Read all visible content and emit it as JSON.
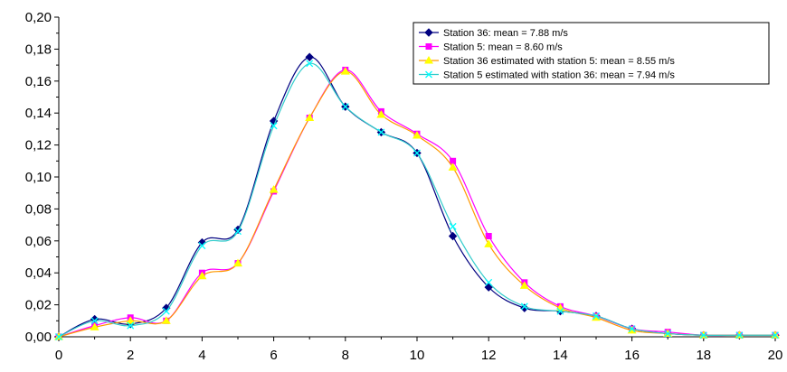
{
  "chart_data": {
    "type": "line",
    "x": [
      0,
      1,
      2,
      3,
      4,
      5,
      6,
      7,
      8,
      9,
      10,
      11,
      12,
      13,
      14,
      15,
      16,
      17,
      18,
      19,
      20
    ],
    "xlim": [
      0,
      20
    ],
    "ylim": [
      0,
      0.2
    ],
    "x_ticks": [
      "0",
      "2",
      "4",
      "6",
      "8",
      "10",
      "12",
      "14",
      "16",
      "18",
      "20"
    ],
    "y_ticks": [
      "0,00",
      "0,02",
      "0,04",
      "0,06",
      "0,08",
      "0,10",
      "0,12",
      "0,14",
      "0,16",
      "0,18",
      "0,20"
    ],
    "grid": false,
    "legend_position": "top-right",
    "series": [
      {
        "name": "Station 36: mean = 7.88 m/s",
        "color": "#000080",
        "marker": "diamond",
        "values": [
          0.0,
          0.011,
          0.008,
          0.018,
          0.059,
          0.067,
          0.135,
          0.175,
          0.144,
          0.128,
          0.115,
          0.063,
          0.031,
          0.018,
          0.016,
          0.013,
          0.005,
          0.002,
          0.001,
          0.001,
          0.001
        ]
      },
      {
        "name": "Station 5: mean = 8.60 m/s",
        "color": "#ff00ff",
        "marker": "square",
        "values": [
          0.0,
          0.007,
          0.012,
          0.01,
          0.04,
          0.046,
          0.091,
          0.137,
          0.167,
          0.141,
          0.127,
          0.11,
          0.063,
          0.034,
          0.019,
          0.013,
          0.005,
          0.003,
          0.001,
          0.001,
          0.001
        ]
      },
      {
        "name": "Station 36 estimated with station 5: mean = 8.55 m/s",
        "color": "#ffff00",
        "line_color": "#ff9900",
        "marker": "triangle",
        "values": [
          0.0,
          0.006,
          0.01,
          0.01,
          0.038,
          0.046,
          0.092,
          0.137,
          0.166,
          0.139,
          0.126,
          0.106,
          0.058,
          0.032,
          0.018,
          0.012,
          0.004,
          0.002,
          0.001,
          0.001,
          0.001
        ]
      },
      {
        "name": "Station 5 estimated with station 36: mean = 7.94 m/s",
        "color": "#00ffff",
        "line_color": "#33cccc",
        "marker": "x",
        "values": [
          0.0,
          0.01,
          0.007,
          0.016,
          0.057,
          0.066,
          0.132,
          0.171,
          0.144,
          0.128,
          0.115,
          0.069,
          0.034,
          0.019,
          0.016,
          0.013,
          0.005,
          0.002,
          0.001,
          0.001,
          0.001
        ]
      }
    ]
  }
}
